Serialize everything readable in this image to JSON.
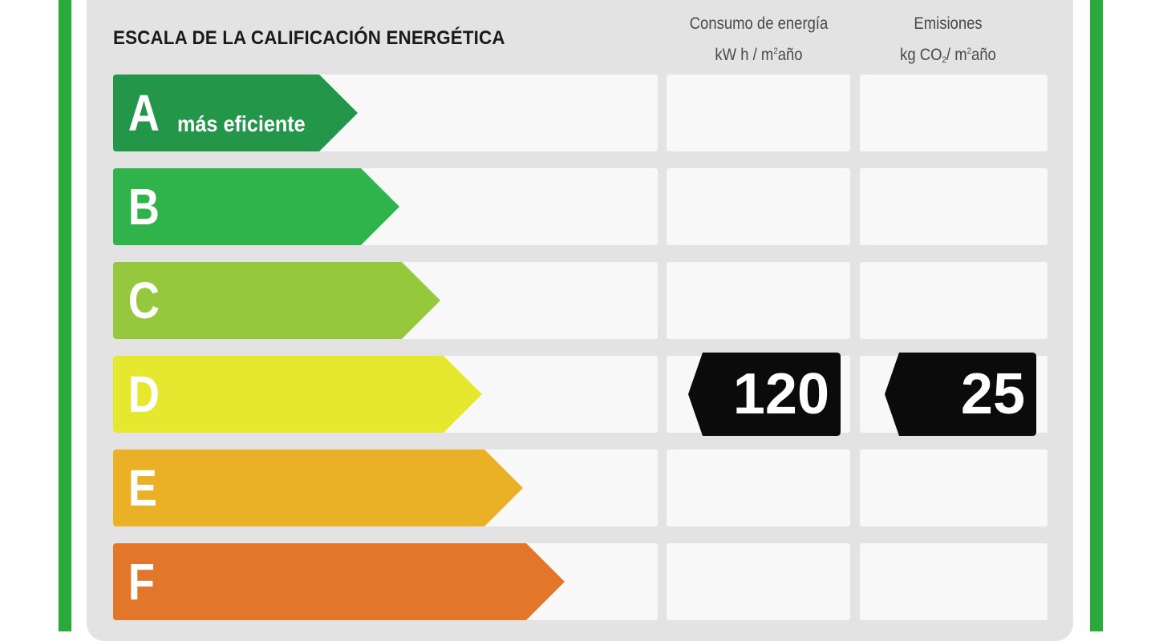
{
  "title": "ESCALA DE LA CALIFICACIÓN ENERGÉTICA",
  "columns": {
    "energy": {
      "line1": "Consumo de energía",
      "line2_prefix": "kW h / m",
      "line2_sup": "2",
      "line2_suffix": "año"
    },
    "emissions": {
      "line1": "Emisiones",
      "line2_prefix": "kg CO",
      "line2_sub": "2",
      "line2_mid": "/ m",
      "line2_sup": "2",
      "line2_suffix": "año"
    }
  },
  "ratings": [
    {
      "letter": "A",
      "sublabel": "más eficiente",
      "color": "#23964a"
    },
    {
      "letter": "B",
      "sublabel": "",
      "color": "#2fb34a"
    },
    {
      "letter": "C",
      "sublabel": "",
      "color": "#96c83d"
    },
    {
      "letter": "D",
      "sublabel": "",
      "color": "#e6e830"
    },
    {
      "letter": "E",
      "sublabel": "",
      "color": "#ebb126"
    },
    {
      "letter": "F",
      "sublabel": "",
      "color": "#e2762b"
    }
  ],
  "current_rating": "D",
  "energy_value": "120",
  "emissions_value": "25",
  "frame_color": "#2aaa3a"
}
